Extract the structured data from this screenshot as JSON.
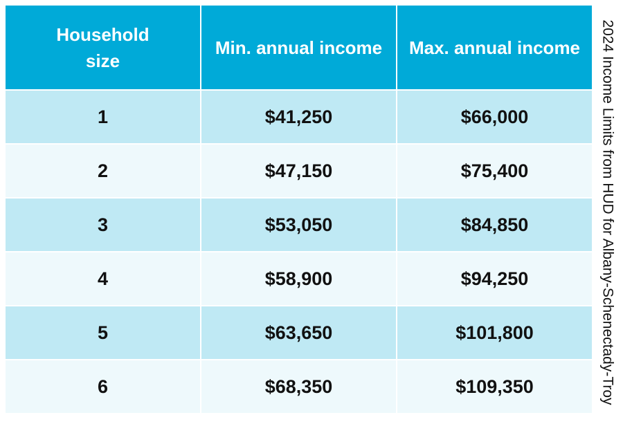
{
  "title": "2024 Income Limits from HUD for Albany-Schenectady-Troy",
  "table": {
    "headers": {
      "household_size_line1": "Household",
      "household_size_line2": "size",
      "min_income": "Min. annual income",
      "max_income": "Max. annual income"
    },
    "rows": [
      {
        "size": "1",
        "min": "$41,250",
        "max": "$66,000"
      },
      {
        "size": "2",
        "min": "$47,150",
        "max": "$75,400"
      },
      {
        "size": "3",
        "min": "$53,050",
        "max": "$84,850"
      },
      {
        "size": "4",
        "min": "$58,900",
        "max": "$94,250"
      },
      {
        "size": "5",
        "min": "$63,650",
        "max": "$101,800"
      },
      {
        "size": "6",
        "min": "$68,350",
        "max": "$109,350"
      }
    ]
  },
  "colors": {
    "header": "#00aad8",
    "row_dark": "#bfe9f4",
    "row_light": "#eef9fc"
  }
}
